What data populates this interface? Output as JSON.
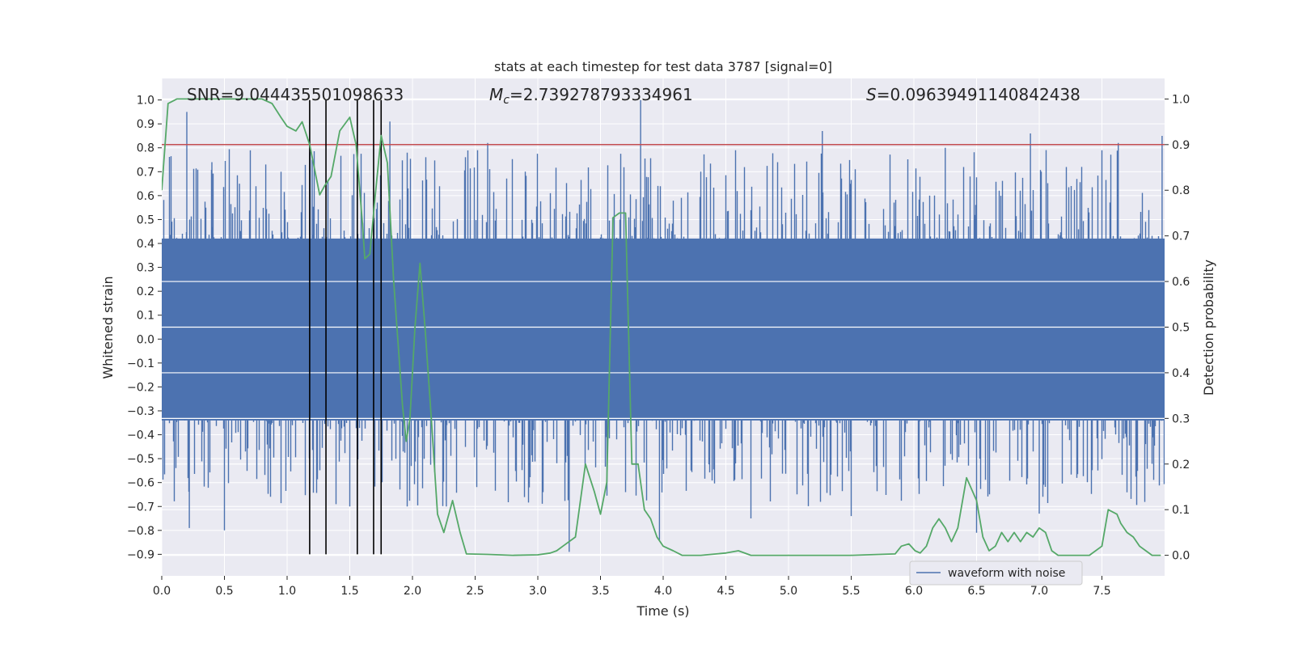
{
  "chart_data": {
    "type": "line",
    "title": "stats at each timestep for test data 3787 [signal=0]",
    "xlabel": "Time (s)",
    "ylabel": "Whitened strain",
    "y2label": "Detection probability",
    "xlim": [
      0.0,
      8.0
    ],
    "ylim": [
      -0.99,
      1.09
    ],
    "y2lim": [
      -0.045,
      1.045
    ],
    "xticks": [
      "0.0",
      "0.5",
      "1.0",
      "1.5",
      "2.0",
      "2.5",
      "3.0",
      "3.5",
      "4.0",
      "4.5",
      "5.0",
      "5.5",
      "6.0",
      "6.5",
      "7.0",
      "7.5"
    ],
    "yticks": [
      "1.0",
      "0.9",
      "0.8",
      "0.7",
      "0.6",
      "0.5",
      "0.4",
      "0.3",
      "0.2",
      "0.1",
      "0.0",
      "−0.1",
      "−0.2",
      "−0.3",
      "−0.4",
      "−0.5",
      "−0.6",
      "−0.7",
      "−0.8",
      "−0.9"
    ],
    "y2ticks": [
      "1.0",
      "0.9",
      "0.8",
      "0.7",
      "0.6",
      "0.5",
      "0.4",
      "0.3",
      "0.2",
      "0.1",
      "0.0"
    ],
    "grid": true,
    "legend_position": "lower-right",
    "annotations": {
      "snr": "SNR=9.044435501098633",
      "mc_symbol": "M",
      "mc_sub": "c",
      "mc_value": "=2.739278793334961",
      "s_symbol": "S",
      "s_value": "=0.09639491140842438"
    },
    "threshold": {
      "y2": 0.9,
      "color": "#c44e52"
    },
    "event_lines": {
      "x": [
        1.18,
        1.31,
        1.56,
        1.69,
        1.75
      ],
      "y_from": 1.0,
      "y_to": -0.9,
      "color": "#000000"
    },
    "series": [
      {
        "name": "waveform with noise",
        "axis": "left",
        "color": "#4c72b0",
        "core_band": [
          -0.34,
          0.42
        ],
        "spikes": [
          {
            "x": 0.2,
            "y": 0.95
          },
          {
            "x": 0.22,
            "y": -0.79
          },
          {
            "x": 0.4,
            "y": 0.74
          },
          {
            "x": 0.5,
            "y": -0.8
          },
          {
            "x": 0.83,
            "y": 0.73
          },
          {
            "x": 1.82,
            "y": 0.91
          },
          {
            "x": 2.6,
            "y": 0.82
          },
          {
            "x": 3.25,
            "y": -0.89
          },
          {
            "x": 3.82,
            "y": 1.0
          },
          {
            "x": 3.97,
            "y": -0.84
          },
          {
            "x": 5.27,
            "y": 0.87
          },
          {
            "x": 6.5,
            "y": -0.81
          },
          {
            "x": 6.93,
            "y": 0.86
          },
          {
            "x": 7.63,
            "y": 0.82
          },
          {
            "x": 7.98,
            "y": 0.85
          },
          {
            "x": 1.5,
            "y": -0.7
          },
          {
            "x": 2.27,
            "y": -0.7
          },
          {
            "x": 4.7,
            "y": -0.75
          },
          {
            "x": 5.5,
            "y": -0.74
          },
          {
            "x": 7.0,
            "y": -0.73
          },
          {
            "x": 0.62,
            "y": 0.65
          },
          {
            "x": 1.2,
            "y": 0.75
          },
          {
            "x": 2.9,
            "y": 0.7
          },
          {
            "x": 4.3,
            "y": 0.7
          },
          {
            "x": 6.25,
            "y": 0.8
          },
          {
            "x": 7.5,
            "y": 0.79
          }
        ]
      },
      {
        "name": "",
        "axis": "right",
        "color": "#55a868",
        "x": [
          0.0,
          0.05,
          0.12,
          0.2,
          0.4,
          0.6,
          0.8,
          0.88,
          0.95,
          1.0,
          1.07,
          1.12,
          1.18,
          1.26,
          1.3,
          1.35,
          1.42,
          1.5,
          1.55,
          1.6,
          1.62,
          1.66,
          1.7,
          1.75,
          1.8,
          1.85,
          1.92,
          1.95,
          1.98,
          2.02,
          2.06,
          2.1,
          2.15,
          2.2,
          2.25,
          2.32,
          2.38,
          2.43,
          2.6,
          2.8,
          3.0,
          3.1,
          3.15,
          3.2,
          3.3,
          3.38,
          3.45,
          3.5,
          3.55,
          3.6,
          3.65,
          3.7,
          3.75,
          3.8,
          3.85,
          3.9,
          3.95,
          4.0,
          4.08,
          4.15,
          4.3,
          4.5,
          4.6,
          4.7,
          5.0,
          5.5,
          5.85,
          5.9,
          5.96,
          6.01,
          6.05,
          6.1,
          6.15,
          6.2,
          6.25,
          6.3,
          6.35,
          6.42,
          6.5,
          6.55,
          6.6,
          6.65,
          6.7,
          6.75,
          6.8,
          6.85,
          6.9,
          6.95,
          7.0,
          7.05,
          7.1,
          7.15,
          7.2,
          7.3,
          7.4,
          7.5,
          7.55,
          7.62,
          7.65,
          7.7,
          7.75,
          7.8,
          7.85,
          7.9,
          7.97
        ],
        "y": [
          0.8,
          0.99,
          1.0,
          1.0,
          1.0,
          1.0,
          1.0,
          0.99,
          0.96,
          0.94,
          0.93,
          0.95,
          0.9,
          0.79,
          0.81,
          0.83,
          0.93,
          0.96,
          0.9,
          0.73,
          0.65,
          0.66,
          0.78,
          0.92,
          0.86,
          0.6,
          0.33,
          0.25,
          0.3,
          0.5,
          0.64,
          0.5,
          0.3,
          0.09,
          0.05,
          0.12,
          0.05,
          0.003,
          0.002,
          0.0,
          0.001,
          0.005,
          0.01,
          0.02,
          0.04,
          0.2,
          0.14,
          0.09,
          0.16,
          0.74,
          0.75,
          0.75,
          0.2,
          0.2,
          0.1,
          0.08,
          0.04,
          0.02,
          0.01,
          0.0,
          0.0,
          0.005,
          0.01,
          0.0,
          0.0,
          0.0,
          0.003,
          0.02,
          0.025,
          0.01,
          0.005,
          0.02,
          0.06,
          0.08,
          0.06,
          0.03,
          0.06,
          0.17,
          0.12,
          0.04,
          0.01,
          0.02,
          0.05,
          0.03,
          0.05,
          0.03,
          0.05,
          0.04,
          0.06,
          0.05,
          0.01,
          0.0,
          0.0,
          0.0,
          0.0,
          0.02,
          0.1,
          0.09,
          0.07,
          0.05,
          0.04,
          0.02,
          0.01,
          0.0,
          0.0
        ]
      }
    ]
  }
}
